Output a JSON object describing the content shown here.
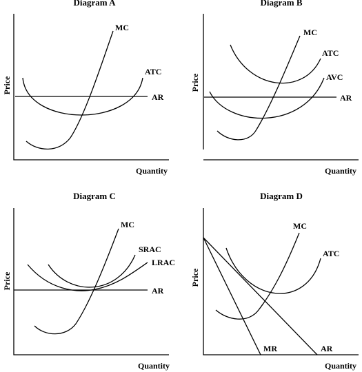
{
  "diagrams": {
    "a": {
      "title": "Diagram A",
      "ylabel": "Price",
      "xlabel": "Quantity",
      "curves": {
        "mc": "MC",
        "atc": "ATC",
        "ar": "AR"
      }
    },
    "b": {
      "title": "Diagram B",
      "ylabel": "Price",
      "xlabel": "Quantity",
      "curves": {
        "mc": "MC",
        "atc": "ATC",
        "avc": "AVC",
        "ar": "AR"
      }
    },
    "c": {
      "title": "Diagram C",
      "ylabel": "Price",
      "xlabel": "Quantity",
      "curves": {
        "mc": "MC",
        "srac": "SRAC",
        "lrac": "LRAC",
        "ar": "AR"
      }
    },
    "d": {
      "title": "Diagram D",
      "ylabel": "Price",
      "xlabel": "Quantity",
      "curves": {
        "mc": "MC",
        "atc": "ATC",
        "mr": "MR",
        "ar": "AR"
      }
    }
  }
}
